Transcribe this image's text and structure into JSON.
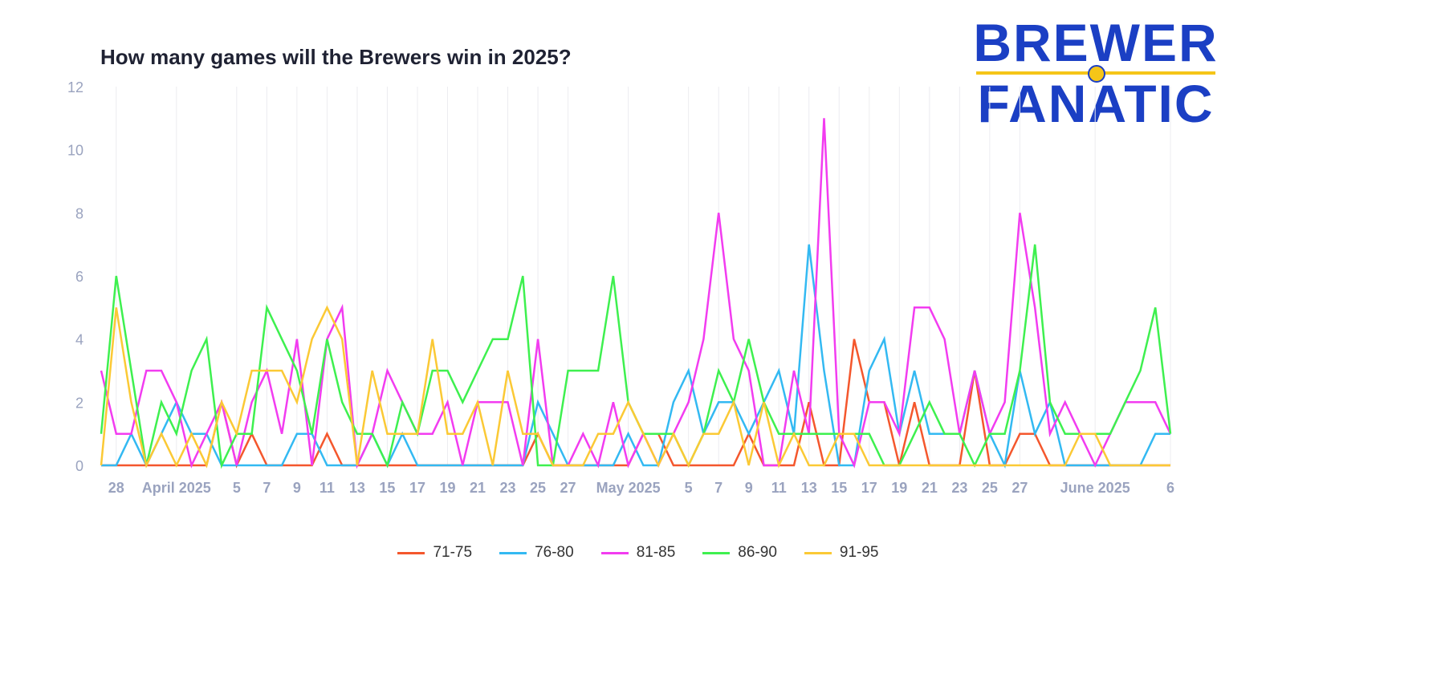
{
  "brand": {
    "line1": "BREWER",
    "line2": "FANATIC",
    "colors": {
      "blue": "#1b3fc4",
      "gold": "#f5c518"
    }
  },
  "chart_data": {
    "type": "line",
    "title": "How many games will the Brewers win in 2025?",
    "xlabel": "",
    "ylabel": "",
    "x_start": "2025-03-27",
    "x_end": "2025-06-06",
    "x_tick_labels": [
      {
        "date": "2025-03-28",
        "label": "28"
      },
      {
        "date": "2025-04-01",
        "label": "April 2025"
      },
      {
        "date": "2025-04-05",
        "label": "5"
      },
      {
        "date": "2025-04-07",
        "label": "7"
      },
      {
        "date": "2025-04-09",
        "label": "9"
      },
      {
        "date": "2025-04-11",
        "label": "11"
      },
      {
        "date": "2025-04-13",
        "label": "13"
      },
      {
        "date": "2025-04-15",
        "label": "15"
      },
      {
        "date": "2025-04-17",
        "label": "17"
      },
      {
        "date": "2025-04-19",
        "label": "19"
      },
      {
        "date": "2025-04-21",
        "label": "21"
      },
      {
        "date": "2025-04-23",
        "label": "23"
      },
      {
        "date": "2025-04-25",
        "label": "25"
      },
      {
        "date": "2025-04-27",
        "label": "27"
      },
      {
        "date": "2025-05-01",
        "label": "May 2025"
      },
      {
        "date": "2025-05-05",
        "label": "5"
      },
      {
        "date": "2025-05-07",
        "label": "7"
      },
      {
        "date": "2025-05-09",
        "label": "9"
      },
      {
        "date": "2025-05-11",
        "label": "11"
      },
      {
        "date": "2025-05-13",
        "label": "13"
      },
      {
        "date": "2025-05-15",
        "label": "15"
      },
      {
        "date": "2025-05-17",
        "label": "17"
      },
      {
        "date": "2025-05-19",
        "label": "19"
      },
      {
        "date": "2025-05-21",
        "label": "21"
      },
      {
        "date": "2025-05-23",
        "label": "23"
      },
      {
        "date": "2025-05-25",
        "label": "25"
      },
      {
        "date": "2025-05-27",
        "label": "27"
      },
      {
        "date": "2025-06-01",
        "label": "June 2025"
      },
      {
        "date": "2025-06-06",
        "label": "6"
      }
    ],
    "ylim": [
      0,
      12
    ],
    "y_ticks": [
      0,
      2,
      4,
      6,
      8,
      10,
      12
    ],
    "grid": "vertical",
    "legend": "bottom",
    "series": [
      {
        "name": "71-75",
        "color": "#f4572d",
        "values": [
          0,
          0,
          0,
          0,
          0,
          0,
          0,
          0,
          2,
          0,
          1,
          0,
          0,
          0,
          0,
          1,
          0,
          0,
          0,
          0,
          0,
          0,
          0,
          0,
          0,
          0,
          0,
          0,
          0,
          1,
          0,
          0,
          0,
          0,
          0,
          0,
          1,
          1,
          0,
          0,
          0,
          0,
          0,
          1,
          0,
          0,
          0,
          2,
          0,
          0,
          4,
          2,
          2,
          0,
          2,
          0,
          0,
          0,
          3,
          0,
          0,
          1,
          1,
          0,
          0,
          0,
          0,
          0,
          0,
          0,
          0,
          0
        ]
      },
      {
        "name": "76-80",
        "color": "#33b9f2",
        "values": [
          0,
          0,
          1,
          0,
          1,
          2,
          1,
          1,
          0,
          0,
          0,
          0,
          0,
          1,
          1,
          0,
          0,
          0,
          1,
          0,
          1,
          0,
          0,
          0,
          0,
          0,
          0,
          0,
          0,
          2,
          1,
          0,
          0,
          0,
          0,
          1,
          0,
          0,
          2,
          3,
          1,
          2,
          2,
          1,
          2,
          3,
          1,
          7,
          3,
          0,
          0,
          3,
          4,
          1,
          3,
          1,
          1,
          1,
          3,
          1,
          0,
          3,
          1,
          2,
          0,
          0,
          0,
          0,
          0,
          0,
          1,
          1
        ]
      },
      {
        "name": "81-85",
        "color": "#f23cf0",
        "values": [
          3,
          1,
          1,
          3,
          3,
          2,
          0,
          1,
          2,
          0,
          2,
          3,
          1,
          4,
          0,
          4,
          5,
          0,
          1,
          3,
          2,
          1,
          1,
          2,
          0,
          2,
          2,
          2,
          0,
          4,
          0,
          0,
          1,
          0,
          2,
          0,
          1,
          0,
          1,
          2,
          4,
          8,
          4,
          3,
          0,
          0,
          3,
          1,
          11,
          1,
          0,
          2,
          2,
          1,
          5,
          5,
          4,
          1,
          3,
          1,
          2,
          8,
          5,
          1,
          2,
          1,
          0,
          1,
          2,
          2,
          2,
          1
        ]
      },
      {
        "name": "86-90",
        "color": "#3ef04f",
        "values": [
          1,
          6,
          3,
          0,
          2,
          1,
          3,
          4,
          0,
          1,
          1,
          5,
          4,
          3,
          1,
          4,
          2,
          1,
          1,
          0,
          2,
          1,
          3,
          3,
          2,
          3,
          4,
          4,
          6,
          0,
          0,
          3,
          3,
          3,
          6,
          2,
          1,
          1,
          1,
          0,
          1,
          3,
          2,
          4,
          2,
          1,
          1,
          1,
          1,
          1,
          1,
          1,
          0,
          0,
          1,
          2,
          1,
          1,
          0,
          1,
          1,
          3,
          7,
          2,
          1,
          1,
          1,
          1,
          2,
          3,
          5,
          1
        ]
      },
      {
        "name": "91-95",
        "color": "#fbc935",
        "values": [
          0,
          5,
          2,
          0,
          1,
          0,
          1,
          0,
          2,
          1,
          3,
          3,
          3,
          2,
          4,
          5,
          4,
          0,
          3,
          1,
          1,
          1,
          4,
          1,
          1,
          2,
          0,
          3,
          1,
          1,
          0,
          0,
          0,
          1,
          1,
          2,
          1,
          0,
          1,
          0,
          1,
          1,
          2,
          0,
          2,
          0,
          1,
          0,
          0,
          1,
          1,
          0,
          0,
          0,
          0,
          0,
          0,
          0,
          0,
          0,
          0,
          0,
          0,
          0,
          0,
          1,
          1,
          0,
          0,
          0,
          0,
          0
        ]
      }
    ]
  }
}
